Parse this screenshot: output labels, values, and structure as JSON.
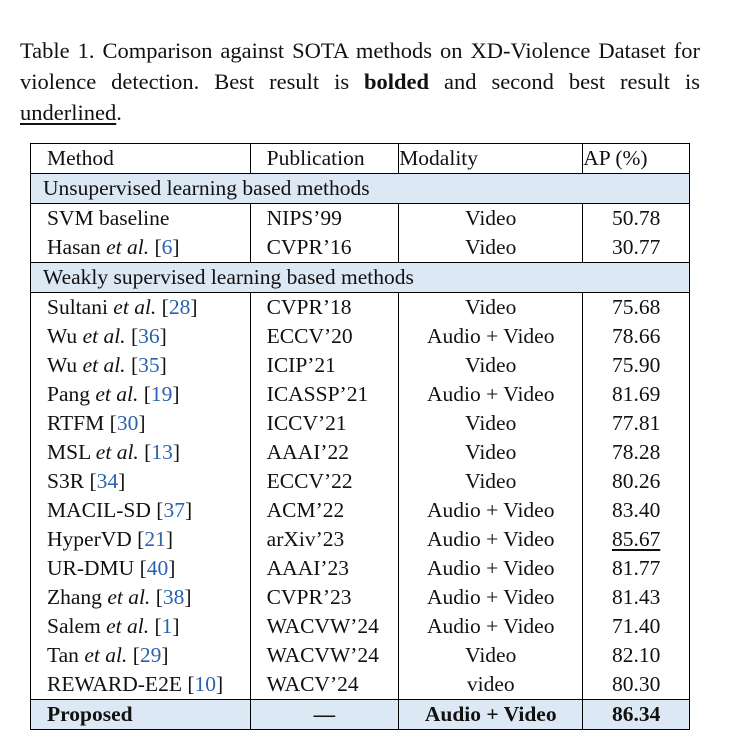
{
  "caption": {
    "part1": "Table 1.  Comparison against SOTA methods on XD-Violence Dataset for violence detection. Best result is ",
    "bold_word": "bolded",
    "part2": " and second best result is ",
    "underline_word": "underlined",
    "part3": "."
  },
  "headers": [
    "Method",
    "Publication",
    "Modality",
    "AP (%)"
  ],
  "groups": {
    "unsupervised": "Unsupervised learning based methods",
    "weakly": "Weakly supervised learning based methods"
  },
  "unsupervised_rows": [
    {
      "name": "SVM baseline",
      "etal": "",
      "cite": "",
      "pub": "NIPS’99",
      "mod": "Video",
      "ap": "50.78",
      "underline": false
    },
    {
      "name": "Hasan ",
      "etal": "et al.",
      "cite": "6",
      "pub": "CVPR’16",
      "mod": "Video",
      "ap": "30.77",
      "underline": false
    }
  ],
  "weakly_rows": [
    {
      "name": "Sultani ",
      "etal": "et al.",
      "cite": "28",
      "pub": "CVPR’18",
      "mod": "Video",
      "ap": "75.68",
      "underline": false
    },
    {
      "name": "Wu ",
      "etal": "et al.",
      "cite": "36",
      "pub": "ECCV’20",
      "mod": "Audio + Video",
      "ap": "78.66",
      "underline": false
    },
    {
      "name": "Wu ",
      "etal": "et al.",
      "cite": "35",
      "pub": "ICIP’21",
      "mod": "Video",
      "ap": "75.90",
      "underline": false
    },
    {
      "name": "Pang ",
      "etal": "et al.",
      "cite": "19",
      "pub": "ICASSP’21",
      "mod": "Audio + Video",
      "ap": "81.69",
      "underline": false
    },
    {
      "name": "RTFM",
      "etal": "",
      "cite": "30",
      "pub": "ICCV’21",
      "mod": "Video",
      "ap": "77.81",
      "underline": false
    },
    {
      "name": "MSL ",
      "etal": "et al.",
      "cite": "13",
      "pub": "AAAI’22",
      "mod": "Video",
      "ap": "78.28",
      "underline": false
    },
    {
      "name": "S3R",
      "etal": "",
      "cite": "34",
      "pub": "ECCV’22",
      "mod": "Video",
      "ap": "80.26",
      "underline": false
    },
    {
      "name": "MACIL-SD",
      "etal": "",
      "cite": "37",
      "pub": "ACM’22",
      "mod": "Audio + Video",
      "ap": "83.40",
      "underline": false
    },
    {
      "name": "HyperVD",
      "etal": "",
      "cite": "21",
      "pub": "arXiv’23",
      "mod": "Audio + Video",
      "ap": "85.67",
      "underline": true
    },
    {
      "name": "UR-DMU",
      "etal": "",
      "cite": "40",
      "pub": "AAAI’23",
      "mod": "Audio + Video",
      "ap": "81.77",
      "underline": false
    },
    {
      "name": "Zhang ",
      "etal": "et al.",
      "cite": "38",
      "pub": "CVPR’23",
      "mod": "Audio + Video",
      "ap": "81.43",
      "underline": false
    },
    {
      "name": "Salem ",
      "etal": "et al.",
      "cite": "1",
      "pub": "WACVW’24",
      "mod": "Audio + Video",
      "ap": "71.40",
      "underline": false
    },
    {
      "name": "Tan ",
      "etal": "et al.",
      "cite": "29",
      "pub": "WACVW’24",
      "mod": "Video",
      "ap": "82.10",
      "underline": false
    },
    {
      "name": "REWARD-E2E",
      "etal": "",
      "cite": "10",
      "pub": "WACV’24",
      "mod": "video",
      "ap": "80.30",
      "underline": false
    }
  ],
  "proposed": {
    "name": "Proposed",
    "pub": "—",
    "mod": "Audio + Video",
    "ap": "86.34"
  },
  "colors": {
    "group_band": "#dde8f5",
    "citation": "#2a62b0"
  }
}
